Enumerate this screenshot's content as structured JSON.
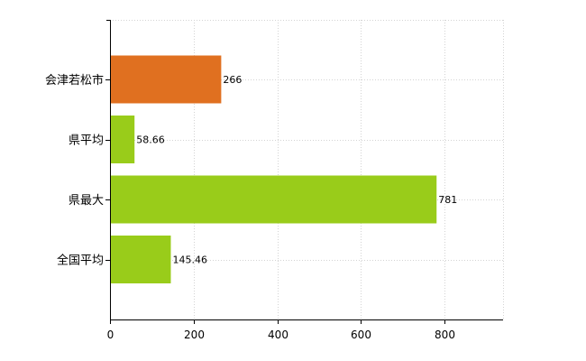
{
  "chart_data": {
    "type": "bar",
    "orientation": "horizontal",
    "categories": [
      "会津若松市",
      "県平均",
      "県最大",
      "全国平均"
    ],
    "values": [
      266,
      58.66,
      781,
      145.46
    ],
    "value_labels": [
      "266",
      "58.66",
      "781",
      "145.46"
    ],
    "bar_colors": [
      "#e07020",
      "#99cc1a",
      "#99cc1a",
      "#99cc1a"
    ],
    "xlim": [
      0,
      940
    ],
    "xticks": [
      0,
      200,
      400,
      600,
      800
    ],
    "xtick_labels": [
      "0",
      "200",
      "400",
      "600",
      "800"
    ],
    "grid": true,
    "title": "",
    "xlabel": "",
    "ylabel": ""
  }
}
